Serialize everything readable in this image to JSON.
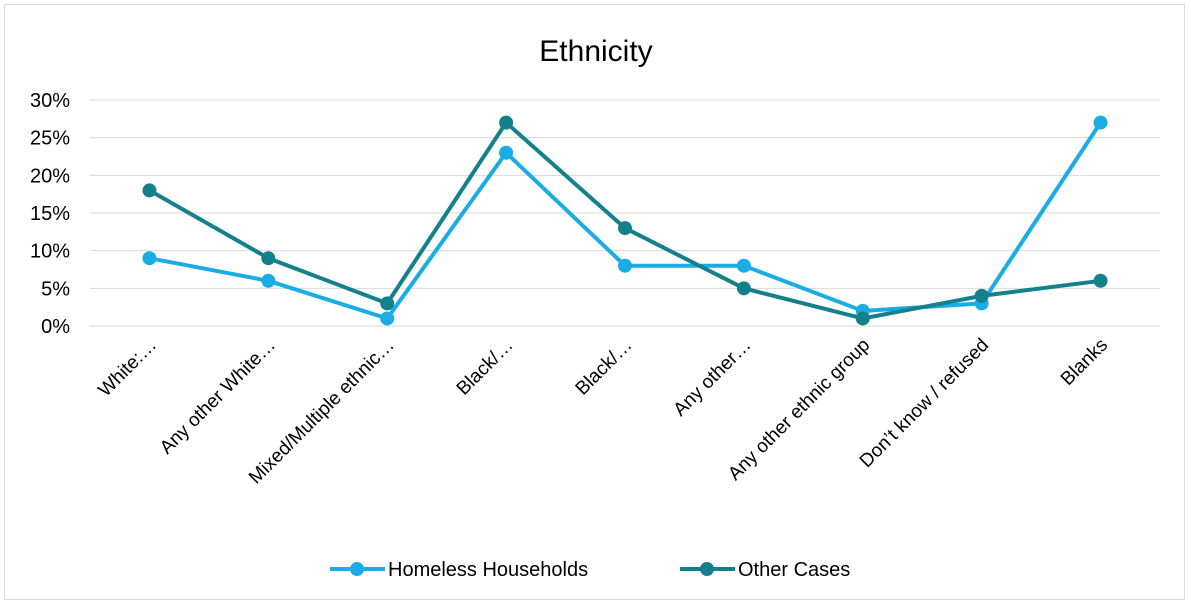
{
  "chart_data": {
    "type": "line",
    "title": "Ethnicity",
    "categories": [
      "White:…",
      "Any other White…",
      "Mixed/Multiple ethnic…",
      "Black/…",
      "Black/…",
      "Any other…",
      "Any other ethnic group",
      "Don’t know / refused",
      "Blanks"
    ],
    "series": [
      {
        "name": "Homeless Households",
        "color": "#1aace4",
        "values": [
          9,
          6,
          1,
          23,
          8,
          8,
          2,
          3,
          27
        ]
      },
      {
        "name": "Other Cases",
        "color": "#13808c",
        "values": [
          18,
          9,
          3,
          27,
          13,
          5,
          1,
          4,
          6
        ]
      }
    ],
    "ylim": [
      0,
      30
    ],
    "yticks": [
      "0%",
      "5%",
      "10%",
      "15%",
      "20%",
      "25%",
      "30%"
    ],
    "grid": true,
    "legend_position": "bottom"
  }
}
